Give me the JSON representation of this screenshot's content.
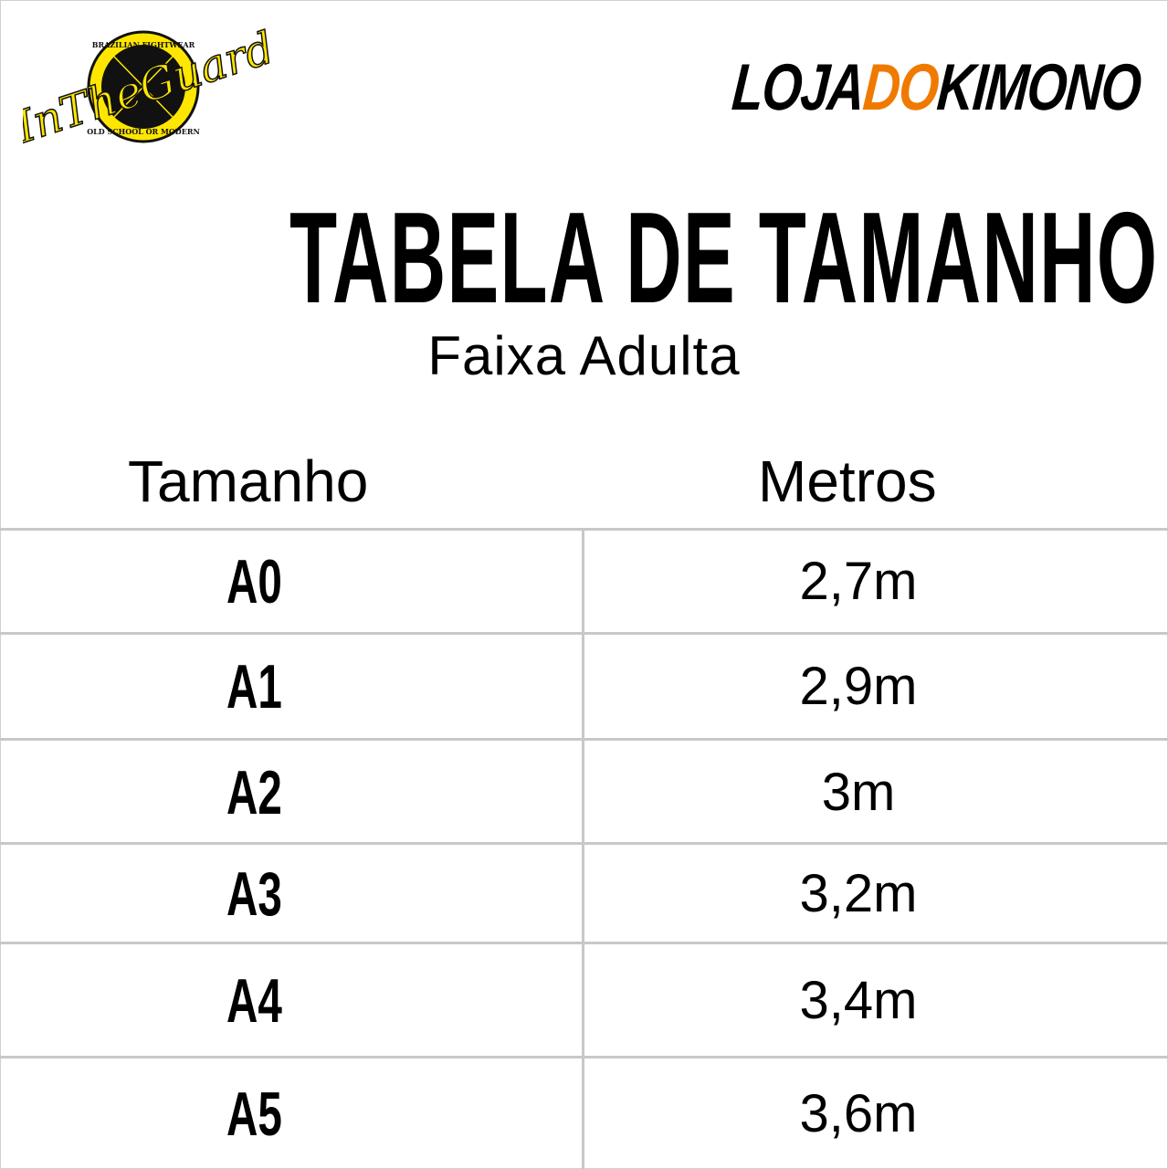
{
  "logos": {
    "left": {
      "name": "In The Guard",
      "ring_top": "BRAZILIAN FIGHTWEAR",
      "ring_bottom": "OLD SCHOOL OR MODERN",
      "script": "InTheGuard",
      "color": "#ffe600"
    },
    "right": {
      "part1": "LOJA",
      "part2": "DO",
      "part3": "KIMONO",
      "accent": "#f07a00"
    }
  },
  "title": "TABELA DE TAMANHO",
  "subtitle": "Faixa Adulta",
  "table": {
    "headers": [
      "Tamanho",
      "Metros"
    ],
    "rows": [
      {
        "size": "A0",
        "meters": "2,7m"
      },
      {
        "size": "A1",
        "meters": "2,9m"
      },
      {
        "size": "A2",
        "meters": "3m"
      },
      {
        "size": "A3",
        "meters": "3,2m"
      },
      {
        "size": "A4",
        "meters": "3,4m"
      },
      {
        "size": "A5",
        "meters": "3,6m"
      }
    ]
  }
}
